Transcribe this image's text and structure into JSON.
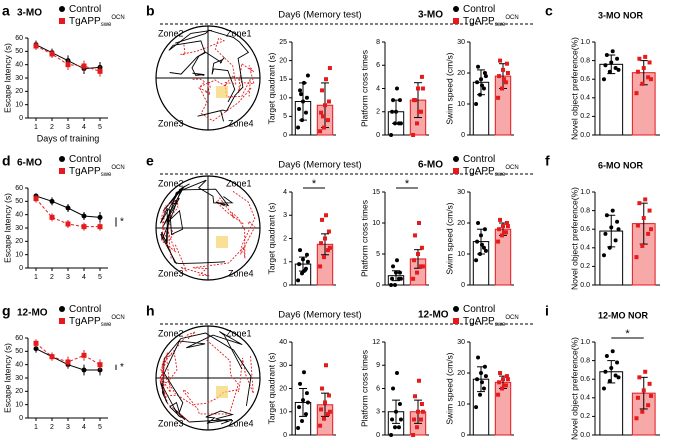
{
  "chart_data": [
    {
      "type": "line",
      "panel": "a",
      "title": "3-MO",
      "ylabel": "Escape latency (s)",
      "xlabel": "Days of training",
      "x": [
        1,
        2,
        3,
        4,
        5
      ],
      "xlim": [
        0.5,
        5.5
      ],
      "xticks": [
        1,
        2,
        3,
        4,
        5
      ],
      "ylim": [
        0,
        60
      ],
      "yticks": [
        0,
        10,
        20,
        30,
        40,
        50,
        60
      ],
      "series": [
        {
          "name": "Control",
          "color": "#000000",
          "values": [
            55,
            49,
            43,
            37,
            38
          ],
          "errors": [
            3,
            3,
            4,
            4,
            4
          ]
        },
        {
          "name": "TgAPP",
          "sub": "swe",
          "sup": "OCN",
          "color": "#e41a1c",
          "values": [
            54,
            48,
            40,
            39,
            35
          ],
          "errors": [
            3,
            3,
            4,
            4,
            4
          ]
        }
      ]
    },
    {
      "type": "bar",
      "panel": "b",
      "heading": "Day6 (Memory test)",
      "age_label": "3-MO",
      "zones": [
        "Zone1",
        "Zone2",
        "Zone3",
        "Zone4"
      ],
      "ylabel": "Target quadrant (s)",
      "ylim": [
        0,
        25
      ],
      "yticks": [
        0,
        5,
        10,
        15,
        20,
        25
      ],
      "series": [
        {
          "name": "Control",
          "color": "#000000",
          "fill": "#ffffff",
          "values": [
            9
          ],
          "errors": [
            5
          ],
          "points": [
            2,
            4,
            6,
            7,
            9,
            10,
            12,
            14,
            16,
            11
          ]
        },
        {
          "name": "TgAPP",
          "sub": "swe",
          "sup": "OCN",
          "color": "#e41a1c",
          "fill": "#f7a8a8",
          "values": [
            8
          ],
          "errors": [
            6
          ],
          "points": [
            1,
            2,
            4,
            6,
            8,
            9,
            12,
            15,
            18,
            5
          ]
        }
      ]
    },
    {
      "type": "bar",
      "ylabel": "Platform cross times",
      "ylim": [
        0,
        8
      ],
      "yticks": [
        0,
        2,
        4,
        6,
        8
      ],
      "series": [
        {
          "color": "#000000",
          "fill": "#ffffff",
          "values": [
            2
          ],
          "errors": [
            1
          ],
          "points": [
            0,
            1,
            1,
            2,
            2,
            3,
            3,
            4,
            1
          ]
        },
        {
          "color": "#e41a1c",
          "fill": "#f7a8a8",
          "values": [
            3
          ],
          "errors": [
            1.5
          ],
          "points": [
            0,
            1,
            2,
            3,
            4,
            5,
            3,
            2,
            4
          ]
        }
      ]
    },
    {
      "type": "bar",
      "ylabel": "Swim speed (cm/s)",
      "ylim": [
        0,
        30
      ],
      "yticks": [
        0,
        10,
        20,
        30
      ],
      "series": [
        {
          "color": "#000000",
          "fill": "#ffffff",
          "values": [
            17
          ],
          "errors": [
            4
          ],
          "points": [
            10,
            13,
            15,
            17,
            18,
            20,
            22,
            16,
            19
          ]
        },
        {
          "color": "#e41a1c",
          "fill": "#f7a8a8",
          "values": [
            19
          ],
          "errors": [
            4
          ],
          "points": [
            12,
            15,
            17,
            19,
            21,
            23,
            24,
            18,
            20
          ]
        }
      ]
    },
    {
      "type": "bar",
      "panel": "c",
      "title": "3-MO NOR",
      "ylabel": "Novel object preference(%)",
      "ylim": [
        0,
        1
      ],
      "yticks": [
        {
          "value": 0,
          "label": "0.0"
        },
        0.2,
        0.4,
        0.6,
        0.8,
        {
          "value": 1,
          "label": "1.0"
        }
      ],
      "series": [
        {
          "color": "#000000",
          "fill": "#ffffff",
          "values": [
            0.76
          ],
          "errors": [
            0.1
          ],
          "points": [
            0.6,
            0.68,
            0.72,
            0.75,
            0.78,
            0.82,
            0.86,
            0.9,
            0.7
          ]
        },
        {
          "color": "#e41a1c",
          "fill": "#f7a8a8",
          "values": [
            0.67
          ],
          "errors": [
            0.13
          ],
          "points": [
            0.45,
            0.55,
            0.62,
            0.68,
            0.72,
            0.78,
            0.82,
            0.84,
            0.6
          ]
        }
      ]
    },
    {
      "type": "line",
      "panel": "d",
      "title": "6-MO",
      "ylabel": "Escape latency (s)",
      "x": [
        1,
        2,
        3,
        4,
        5
      ],
      "xlim": [
        0.5,
        5.5
      ],
      "xticks": [
        1,
        2,
        3,
        4,
        5
      ],
      "ylim": [
        0,
        60
      ],
      "yticks": [
        0,
        10,
        20,
        30,
        40,
        50,
        60
      ],
      "sig": "*",
      "series": [
        {
          "name": "Control",
          "color": "#000000",
          "values": [
            54,
            50,
            45,
            39,
            38
          ],
          "errors": [
            2,
            3,
            3,
            3,
            4
          ]
        },
        {
          "name": "TgAPP",
          "sub": "swe",
          "sup": "OCN",
          "color": "#e41a1c",
          "values": [
            52,
            38,
            33,
            31,
            31
          ],
          "errors": [
            3,
            3,
            3,
            3,
            3
          ]
        }
      ]
    },
    {
      "type": "bar",
      "panel": "e",
      "heading": "Day6 (Memory test)",
      "age_label": "6-MO",
      "zones": [
        "Zone1",
        "Zone2",
        "Zone3",
        "Zone4"
      ],
      "ylabel": "Target quadrant (s)",
      "ylim": [
        0,
        4
      ],
      "yticks": [
        0,
        1,
        2,
        3,
        4
      ],
      "sig": "*",
      "series": [
        {
          "name": "Control",
          "color": "#000000",
          "fill": "#ffffff",
          "values": [
            0.9
          ],
          "errors": [
            0.3
          ],
          "points": [
            0.2,
            0.5,
            0.7,
            0.9,
            1.1,
            1.3,
            1.5,
            0.6,
            1.0
          ]
        },
        {
          "name": "TgAPP",
          "sub": "swe",
          "sup": "OCN",
          "color": "#e41a1c",
          "fill": "#f7a8a8",
          "values": [
            1.75
          ],
          "errors": [
            0.45
          ],
          "points": [
            0.8,
            1.2,
            1.5,
            1.8,
            2.0,
            2.3,
            2.8,
            3.0,
            1.6
          ]
        }
      ]
    },
    {
      "type": "bar",
      "ylabel": "Platform cross times",
      "ylim": [
        0,
        15
      ],
      "yticks": [
        0,
        5,
        10,
        15
      ],
      "sig": "*",
      "series": [
        {
          "color": "#000000",
          "fill": "#ffffff",
          "values": [
            1.5
          ],
          "errors": [
            0.8
          ],
          "points": [
            0,
            0,
            1,
            1,
            2,
            2,
            3,
            4,
            1
          ]
        },
        {
          "color": "#e41a1c",
          "fill": "#f7a8a8",
          "values": [
            4.2
          ],
          "errors": [
            1.5
          ],
          "points": [
            1,
            2,
            3,
            4,
            5,
            6,
            8,
            10,
            3
          ]
        }
      ]
    },
    {
      "type": "bar",
      "ylabel": "Swim speed (cm/s)",
      "ylim": [
        0,
        30
      ],
      "yticks": [
        0,
        10,
        20,
        30
      ],
      "series": [
        {
          "color": "#000000",
          "fill": "#ffffff",
          "values": [
            14
          ],
          "errors": [
            4
          ],
          "points": [
            8,
            10,
            12,
            14,
            16,
            18,
            20,
            13,
            11
          ]
        },
        {
          "color": "#e41a1c",
          "fill": "#f7a8a8",
          "values": [
            18
          ],
          "errors": [
            2
          ],
          "points": [
            14,
            16,
            17,
            18,
            19,
            20,
            21,
            17,
            19
          ]
        }
      ]
    },
    {
      "type": "bar",
      "panel": "f",
      "title": "6-MO NOR",
      "ylabel": "Novel object preference(%)",
      "ylim": [
        0,
        1
      ],
      "yticks": [
        {
          "value": 0,
          "label": "0.0"
        },
        0.2,
        0.4,
        0.6,
        0.8,
        {
          "value": 1,
          "label": "1.0"
        }
      ],
      "series": [
        {
          "color": "#000000",
          "fill": "#ffffff",
          "values": [
            0.58
          ],
          "errors": [
            0.17
          ],
          "points": [
            0.32,
            0.4,
            0.48,
            0.55,
            0.62,
            0.68,
            0.75,
            0.8,
            0.6
          ]
        },
        {
          "color": "#e41a1c",
          "fill": "#f7a8a8",
          "values": [
            0.66
          ],
          "errors": [
            0.22
          ],
          "points": [
            0.3,
            0.42,
            0.55,
            0.64,
            0.72,
            0.8,
            0.88,
            0.92,
            0.6
          ]
        }
      ]
    },
    {
      "type": "line",
      "panel": "g",
      "title": "12-MO",
      "ylabel": "Escape latency (s)",
      "x": [
        1,
        2,
        3,
        4,
        5
      ],
      "xlim": [
        0.5,
        5.5
      ],
      "xticks": [
        1,
        2,
        3,
        4,
        5
      ],
      "ylim": [
        0,
        60
      ],
      "yticks": [
        0,
        10,
        20,
        30,
        40,
        50,
        60
      ],
      "sig": "*",
      "series": [
        {
          "name": "Control",
          "color": "#000000",
          "values": [
            52,
            46,
            40,
            36,
            36
          ],
          "errors": [
            3,
            3,
            3,
            4,
            4
          ]
        },
        {
          "name": "TgAPP",
          "sub": "swe",
          "sup": "OCN",
          "color": "#e41a1c",
          "values": [
            56,
            46,
            42,
            47,
            40
          ],
          "errors": [
            3,
            3,
            4,
            4,
            4
          ]
        }
      ]
    },
    {
      "type": "bar",
      "panel": "h",
      "heading": "Day6 (Memory test)",
      "age_label": "12-MO",
      "zones": [
        "Zone1",
        "Zone2",
        "Zone3",
        "Zone4"
      ],
      "ylabel": "Target quadrant (s)",
      "ylim": [
        0,
        40
      ],
      "yticks": [
        0,
        10,
        20,
        30,
        40
      ],
      "series": [
        {
          "name": "Control",
          "color": "#000000",
          "fill": "#ffffff",
          "values": [
            14
          ],
          "errors": [
            6
          ],
          "points": [
            3,
            6,
            9,
            12,
            15,
            18,
            22,
            27,
            14
          ]
        },
        {
          "name": "TgAPP",
          "sub": "swe",
          "sup": "OCN",
          "color": "#e41a1c",
          "fill": "#f7a8a8",
          "values": [
            13
          ],
          "errors": [
            5
          ],
          "points": [
            4,
            7,
            9,
            11,
            14,
            17,
            20,
            30,
            10
          ]
        }
      ]
    },
    {
      "type": "bar",
      "ylabel": "Platform cross times",
      "ylim": [
        0,
        12
      ],
      "yticks": [
        0,
        3,
        6,
        9,
        12
      ],
      "series": [
        {
          "color": "#000000",
          "fill": "#ffffff",
          "values": [
            3
          ],
          "errors": [
            1.5
          ],
          "points": [
            0,
            1,
            1,
            2,
            3,
            4,
            6,
            8,
            2
          ]
        },
        {
          "color": "#e41a1c",
          "fill": "#f7a8a8",
          "values": [
            3
          ],
          "errors": [
            1.5
          ],
          "points": [
            0,
            1,
            2,
            2,
            3,
            4,
            5,
            7,
            3
          ]
        }
      ]
    },
    {
      "type": "bar",
      "ylabel": "Swim speed (cm/s)",
      "ylim": [
        0,
        30
      ],
      "yticks": [
        0,
        10,
        20,
        30
      ],
      "series": [
        {
          "color": "#000000",
          "fill": "#ffffff",
          "values": [
            18
          ],
          "errors": [
            4
          ],
          "points": [
            9,
            13,
            15,
            18,
            20,
            22,
            25,
            17,
            19
          ]
        },
        {
          "color": "#e41a1c",
          "fill": "#f7a8a8",
          "values": [
            17
          ],
          "errors": [
            2
          ],
          "points": [
            13,
            15,
            16,
            17,
            18,
            19,
            20,
            16,
            18
          ]
        }
      ]
    },
    {
      "type": "bar",
      "panel": "i",
      "title": "12-MO NOR",
      "ylabel": "Novel object preference(%)",
      "ylim": [
        0,
        1
      ],
      "yticks": [
        {
          "value": 0,
          "label": "0.0"
        },
        0.2,
        0.4,
        0.6,
        0.8,
        {
          "value": 1,
          "label": "1.0"
        }
      ],
      "sig": "*",
      "series": [
        {
          "color": "#000000",
          "fill": "#ffffff",
          "values": [
            0.68
          ],
          "errors": [
            0.12
          ],
          "points": [
            0.5,
            0.58,
            0.64,
            0.68,
            0.72,
            0.78,
            0.85,
            0.9,
            0.62
          ]
        },
        {
          "color": "#e41a1c",
          "fill": "#f7a8a8",
          "values": [
            0.45
          ],
          "errors": [
            0.17
          ],
          "points": [
            0.18,
            0.25,
            0.32,
            0.4,
            0.48,
            0.55,
            0.62,
            0.68,
            0.42
          ]
        }
      ]
    }
  ]
}
